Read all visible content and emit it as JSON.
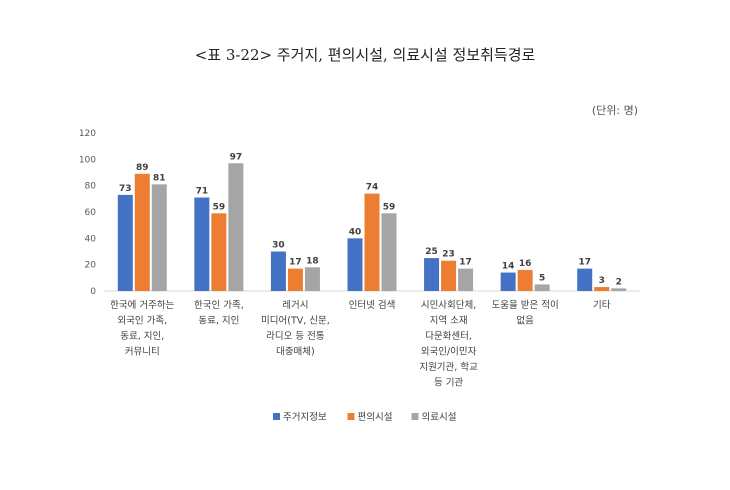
{
  "chart_data": {
    "type": "bar",
    "title": "<표 3-22> 주거지, 편의시설, 의료시설 정보취득경로",
    "unit": "(단위: 명)",
    "ylim": [
      0,
      120
    ],
    "yticks": [
      "0",
      "20",
      "40",
      "60",
      "80",
      "100",
      "120"
    ],
    "grid": false,
    "legend_position": "bottom",
    "categories": [
      [
        "한국에 거주하는",
        "외국인 가족,",
        "동료, 지인,",
        "커뮤니티"
      ],
      [
        "한국인 가족,",
        "동료, 지인"
      ],
      [
        "레거시",
        "미디어(TV, 신문,",
        "라디오 등 전통",
        "대중매체)"
      ],
      [
        "인터넷 검색"
      ],
      [
        "시민사회단체,",
        "지역 소재",
        "다문화센터,",
        "외국인/이민자",
        "지원기관, 학교",
        "등 기관"
      ],
      [
        "도움을 받은 적이",
        "없음"
      ],
      [
        "기타"
      ]
    ],
    "series": [
      {
        "name": "주거지정보",
        "color": "#4472C4",
        "values": [
          73,
          71,
          30,
          40,
          25,
          14,
          17
        ]
      },
      {
        "name": "편의시설",
        "color": "#ED7D31",
        "values": [
          89,
          59,
          17,
          74,
          23,
          16,
          3
        ]
      },
      {
        "name": "의료시설",
        "color": "#A5A5A5",
        "values": [
          81,
          97,
          18,
          59,
          17,
          5,
          2
        ]
      }
    ]
  }
}
